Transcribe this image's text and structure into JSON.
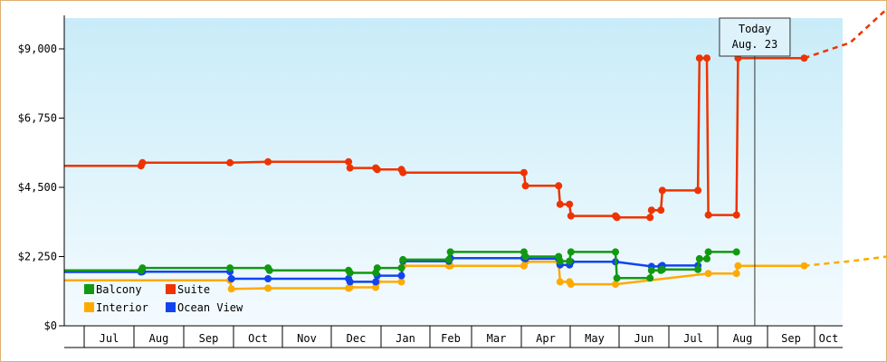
{
  "chart_data": {
    "type": "line",
    "title": "",
    "xlabel": "",
    "ylabel": "",
    "ylim": [
      0,
      10000
    ],
    "y_ticks": [
      {
        "value": 0,
        "label": "$0"
      },
      {
        "value": 2250,
        "label": "$2,250"
      },
      {
        "value": 4500,
        "label": "$4,500"
      },
      {
        "value": 6750,
        "label": "$6,750"
      },
      {
        "value": 9000,
        "label": "$9,000"
      }
    ],
    "months": [
      "Jul",
      "Aug",
      "Sep",
      "Oct",
      "Nov",
      "Dec",
      "Jan",
      "Feb",
      "Mar",
      "Apr",
      "May",
      "Jun",
      "Jul",
      "Aug",
      "Sep",
      "Oct"
    ],
    "today": {
      "line1": "Today",
      "line2": "Aug. 23",
      "x": 13.57
    },
    "legend": [
      {
        "name": "Balcony",
        "color": "#119911"
      },
      {
        "name": "Suite",
        "color": "#ee3300"
      },
      {
        "name": "Interior",
        "color": "#ffaa00"
      },
      {
        "name": "Ocean View",
        "color": "#1144ee"
      }
    ],
    "legend_placement": "bottom-left",
    "grid": false,
    "series": [
      {
        "name": "Suite",
        "color": "#ee3300",
        "points": [
          [
            -0.5,
            5200
          ],
          [
            1.15,
            5200
          ],
          [
            1.18,
            5300
          ],
          [
            2.95,
            5300
          ],
          [
            3.72,
            5330
          ],
          [
            5.35,
            5330
          ],
          [
            5.38,
            5130
          ],
          [
            5.9,
            5130
          ],
          [
            5.93,
            5080
          ],
          [
            6.42,
            5080
          ],
          [
            6.45,
            4980
          ],
          [
            8.9,
            4980
          ],
          [
            8.93,
            4550
          ],
          [
            9.6,
            4550
          ],
          [
            9.63,
            3950
          ],
          [
            9.82,
            3950
          ],
          [
            9.85,
            3570
          ],
          [
            10.75,
            3570
          ],
          [
            10.78,
            3520
          ],
          [
            11.45,
            3520
          ],
          [
            11.48,
            3760
          ],
          [
            11.67,
            3760
          ],
          [
            11.7,
            4400
          ],
          [
            12.42,
            4400
          ],
          [
            12.45,
            8700
          ],
          [
            12.6,
            8700
          ],
          [
            12.63,
            3600
          ],
          [
            13.2,
            3600
          ],
          [
            13.23,
            8700
          ],
          [
            14.57,
            8700
          ]
        ],
        "projection": [
          [
            14.57,
            8700
          ],
          [
            15.5,
            9200
          ],
          [
            16.5,
            10300
          ]
        ]
      },
      {
        "name": "Balcony",
        "color": "#119911",
        "points": [
          [
            -0.5,
            1800
          ],
          [
            1.15,
            1800
          ],
          [
            1.18,
            1880
          ],
          [
            2.95,
            1880
          ],
          [
            3.72,
            1880
          ],
          [
            3.75,
            1800
          ],
          [
            5.35,
            1800
          ],
          [
            5.38,
            1720
          ],
          [
            5.9,
            1720
          ],
          [
            5.93,
            1880
          ],
          [
            6.42,
            1880
          ],
          [
            6.45,
            2150
          ],
          [
            7.38,
            2150
          ],
          [
            7.41,
            2400
          ],
          [
            8.9,
            2400
          ],
          [
            8.93,
            2250
          ],
          [
            9.6,
            2250
          ],
          [
            9.63,
            2100
          ],
          [
            9.82,
            2100
          ],
          [
            9.85,
            2400
          ],
          [
            10.75,
            2400
          ],
          [
            10.78,
            1550
          ],
          [
            11.45,
            1550
          ],
          [
            11.48,
            1800
          ],
          [
            11.67,
            1800
          ],
          [
            11.7,
            1830
          ],
          [
            12.42,
            1830
          ],
          [
            12.45,
            2180
          ],
          [
            12.6,
            2180
          ],
          [
            12.63,
            2400
          ],
          [
            13.2,
            2400
          ]
        ]
      },
      {
        "name": "Ocean View",
        "color": "#1144ee",
        "points": [
          [
            -0.5,
            1750
          ],
          [
            1.15,
            1750
          ],
          [
            1.18,
            1760
          ],
          [
            2.95,
            1760
          ],
          [
            2.98,
            1530
          ],
          [
            3.72,
            1530
          ],
          [
            5.35,
            1530
          ],
          [
            5.38,
            1430
          ],
          [
            5.9,
            1430
          ],
          [
            5.93,
            1630
          ],
          [
            6.42,
            1630
          ],
          [
            6.45,
            2100
          ],
          [
            7.38,
            2100
          ],
          [
            7.41,
            2200
          ],
          [
            8.9,
            2200
          ],
          [
            8.93,
            2180
          ],
          [
            9.6,
            2180
          ],
          [
            9.63,
            1980
          ],
          [
            9.82,
            1980
          ],
          [
            9.85,
            2080
          ],
          [
            10.75,
            2080
          ],
          [
            11.48,
            1930
          ],
          [
            11.67,
            1930
          ],
          [
            11.7,
            1960
          ],
          [
            12.42,
            1960
          ]
        ]
      },
      {
        "name": "Interior",
        "color": "#ffaa00",
        "points": [
          [
            -0.5,
            1480
          ],
          [
            2.95,
            1480
          ],
          [
            2.98,
            1200
          ],
          [
            3.72,
            1220
          ],
          [
            5.35,
            1220
          ],
          [
            5.38,
            1250
          ],
          [
            5.9,
            1250
          ],
          [
            5.93,
            1430
          ],
          [
            6.42,
            1430
          ],
          [
            6.45,
            1950
          ],
          [
            7.38,
            1950
          ],
          [
            7.41,
            1950
          ],
          [
            8.9,
            1950
          ],
          [
            8.93,
            2080
          ],
          [
            9.6,
            2080
          ],
          [
            9.63,
            1430
          ],
          [
            9.82,
            1430
          ],
          [
            9.85,
            1350
          ],
          [
            10.75,
            1350
          ],
          [
            12.63,
            1700
          ],
          [
            13.2,
            1700
          ],
          [
            13.23,
            1950
          ],
          [
            14.57,
            1950
          ]
        ],
        "projection": [
          [
            14.57,
            1950
          ],
          [
            15.5,
            2100
          ],
          [
            16.5,
            2250
          ]
        ]
      }
    ]
  }
}
